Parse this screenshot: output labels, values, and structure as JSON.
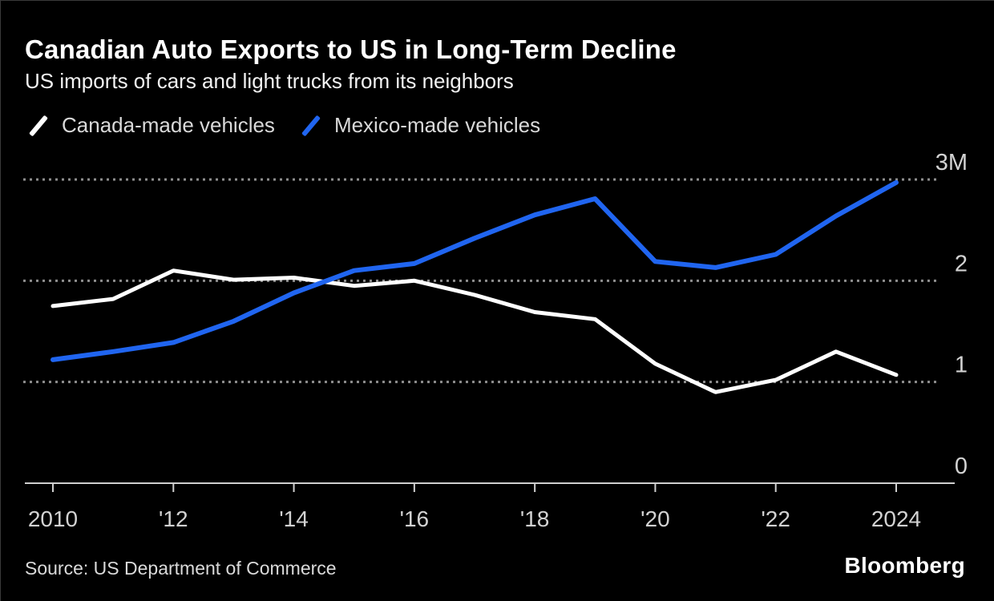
{
  "header": {
    "title": "Canadian Auto Exports to US in Long-Term Decline",
    "subtitle": "US imports of cars and light trucks from its neighbors"
  },
  "legend": [
    {
      "label": "Canada-made vehicles",
      "color": "#ffffff"
    },
    {
      "label": "Mexico-made vehicles",
      "color": "#2065f0"
    }
  ],
  "colors": {
    "background": "#000000",
    "canada_line": "#ffffff",
    "mexico_line": "#2065f0",
    "gridline": "#8f8f8f",
    "axis": "#cfcfcf",
    "tick_label": "#d2d2d2"
  },
  "chart_data": {
    "type": "line",
    "x": [
      2010,
      2011,
      2012,
      2013,
      2014,
      2015,
      2016,
      2017,
      2018,
      2019,
      2020,
      2021,
      2022,
      2023,
      2024
    ],
    "series": [
      {
        "name": "Canada-made vehicles",
        "color": "#ffffff",
        "values": [
          1.75,
          1.82,
          2.1,
          2.01,
          2.03,
          1.95,
          2.0,
          1.86,
          1.69,
          1.62,
          1.18,
          0.9,
          1.02,
          1.3,
          1.07
        ]
      },
      {
        "name": "Mexico-made vehicles",
        "color": "#2065f0",
        "values": [
          1.22,
          1.3,
          1.39,
          1.6,
          1.88,
          2.1,
          2.17,
          2.42,
          2.65,
          2.81,
          2.19,
          2.13,
          2.26,
          2.64,
          2.97
        ]
      }
    ],
    "title": "Canadian Auto Exports to US in Long-Term Decline",
    "subtitle": "US imports of cars and light trucks from its neighbors",
    "xlabel": "",
    "ylabel": "",
    "units": "millions of vehicles",
    "xlim": [
      2010,
      2024
    ],
    "ylim": [
      0,
      3.3
    ],
    "grid": "horizontal-dashed",
    "legend_position": "top-left",
    "x_ticks": [
      {
        "year": 2010,
        "label": "2010"
      },
      {
        "year": 2012,
        "label": "'12"
      },
      {
        "year": 2014,
        "label": "'14"
      },
      {
        "year": 2016,
        "label": "'16"
      },
      {
        "year": 2018,
        "label": "'18"
      },
      {
        "year": 2020,
        "label": "'20"
      },
      {
        "year": 2022,
        "label": "'22"
      },
      {
        "year": 2024,
        "label": "2024"
      }
    ],
    "y_ticks": [
      {
        "value": 3,
        "label": "3M"
      },
      {
        "value": 2,
        "label": "2"
      },
      {
        "value": 1,
        "label": "1"
      },
      {
        "value": 0,
        "label": "0"
      }
    ]
  },
  "footer": {
    "source": "Source: US Department of Commerce",
    "brand": "Bloomberg"
  }
}
